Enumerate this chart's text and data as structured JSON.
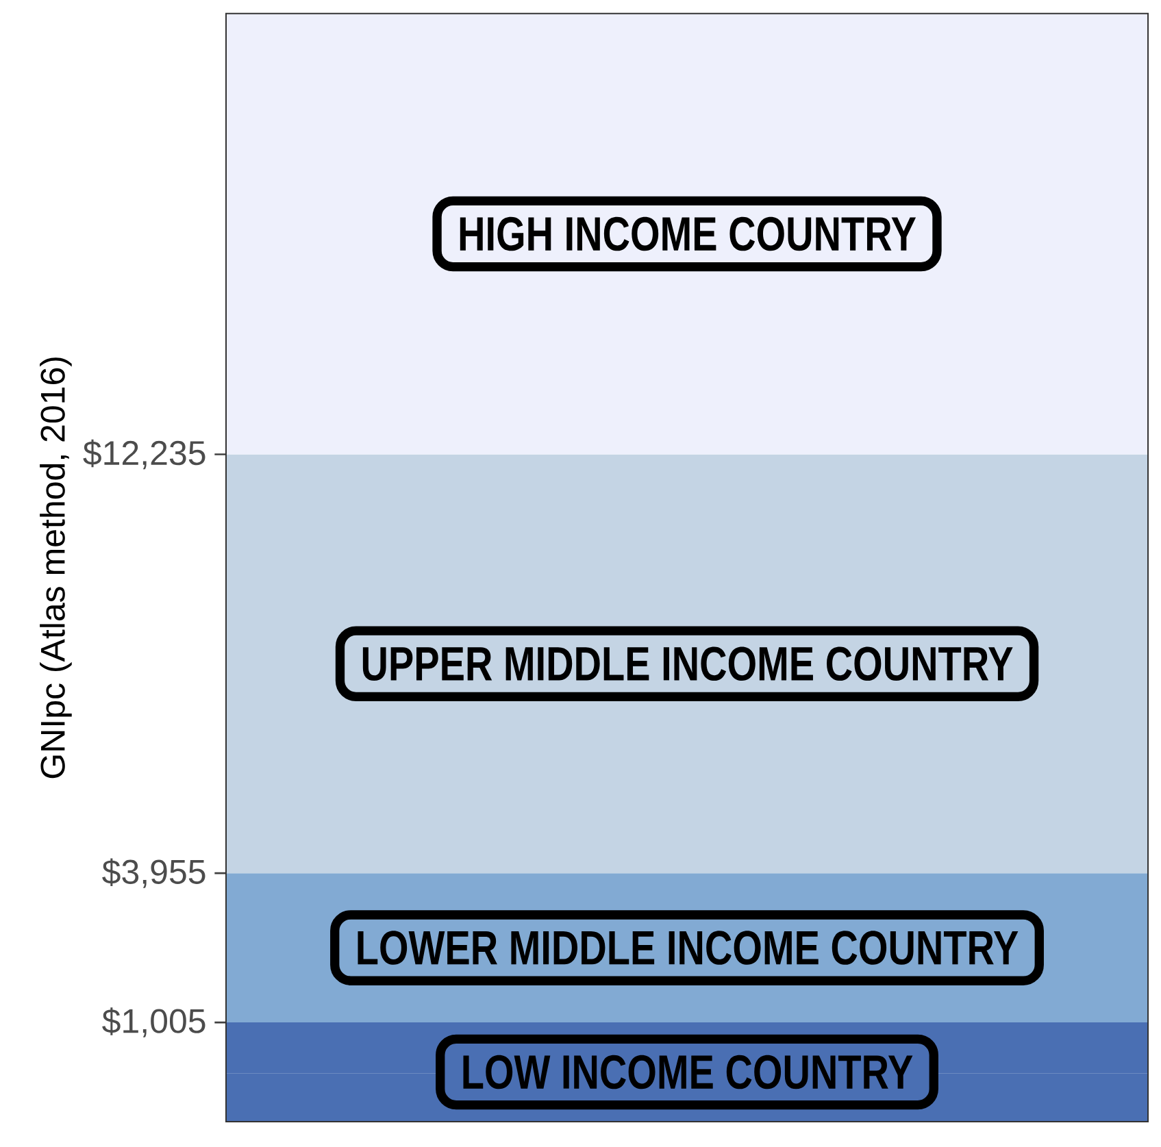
{
  "chart_data": {
    "type": "bar",
    "stacked": true,
    "ylabel": "GNIpc (Atlas method, 2016)",
    "ylim": [
      -957,
      20950
    ],
    "yticks": [
      {
        "value": 1005,
        "label": "$1,005"
      },
      {
        "value": 3955,
        "label": "$3,955"
      },
      {
        "value": 12235,
        "label": "$12,235"
      }
    ],
    "categories": [
      null
    ],
    "series": [
      {
        "color": "#4a6fb3",
        "values": [
          -957
        ]
      },
      {
        "name": "LOW INCOME COUNTRY",
        "color": "#4a6fb3",
        "values": [
          1005
        ]
      },
      {
        "name": "LOWER MIDDLE INCOME COUNTRY",
        "color": "#82aad3",
        "values": [
          2950
        ]
      },
      {
        "name": "UPPER MIDDLE INCOME COUNTRY",
        "color": "#c4d4e4",
        "values": [
          8280
        ]
      },
      {
        "name": "HIGH INCOME COUNTRY",
        "color": "#eef0fc",
        "values": [
          8715
        ]
      }
    ]
  }
}
